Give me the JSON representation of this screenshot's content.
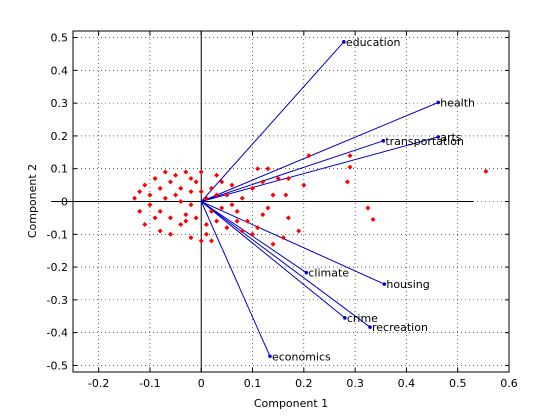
{
  "chart_data": {
    "type": "scatter",
    "subtype": "pca-biplot",
    "title": "",
    "xlabel": "Component 1",
    "ylabel": "Component 2",
    "xlim": [
      -0.25,
      0.6
    ],
    "ylim": [
      -0.52,
      0.52
    ],
    "xticks": [
      -0.2,
      -0.1,
      0,
      0.1,
      0.2,
      0.3,
      0.4,
      0.5,
      0.6
    ],
    "xtick_labels": [
      "-0.2",
      "-0.1",
      "0",
      "0.1",
      "0.2",
      "0.3",
      "0.4",
      "0.5",
      "0.6"
    ],
    "yticks": [
      -0.5,
      -0.4,
      -0.3,
      -0.2,
      -0.1,
      0,
      0.1,
      0.2,
      0.3,
      0.4,
      0.5
    ],
    "ytick_labels": [
      "-0.5",
      "-0.4",
      "-0.3",
      "-0.2",
      "-0.1",
      "0",
      "0.1",
      "0.2",
      "0.3",
      "0.4",
      "0.5"
    ],
    "grid": true,
    "grid_style": "dotted",
    "colors": {
      "vectors": "#0000cc",
      "points": "#ff0000",
      "axes": "#000000",
      "grid": "#000000"
    },
    "vectors": [
      {
        "label": "education",
        "x": 0.278,
        "y": 0.487
      },
      {
        "label": "health",
        "x": 0.462,
        "y": 0.302
      },
      {
        "label": "arts",
        "x": 0.462,
        "y": 0.197
      },
      {
        "label": "transportation",
        "x": 0.355,
        "y": 0.185
      },
      {
        "label": "climate",
        "x": 0.205,
        "y": -0.217
      },
      {
        "label": "housing",
        "x": 0.357,
        "y": -0.252
      },
      {
        "label": "crime",
        "x": 0.28,
        "y": -0.355
      },
      {
        "label": "recreation",
        "x": 0.329,
        "y": -0.383
      },
      {
        "label": "economics",
        "x": 0.134,
        "y": -0.472
      }
    ],
    "points": [
      [
        0.555,
        0.092
      ],
      [
        0.29,
        0.14
      ],
      [
        0.29,
        0.105
      ],
      [
        0.285,
        0.06
      ],
      [
        0.325,
        -0.02
      ],
      [
        0.335,
        -0.055
      ],
      [
        0.21,
        0.14
      ],
      [
        0.2,
        0.05
      ],
      [
        0.165,
        0.02
      ],
      [
        0.17,
        -0.05
      ],
      [
        0.19,
        -0.09
      ],
      [
        0.16,
        -0.11
      ],
      [
        0.12,
        0.06
      ],
      [
        0.13,
        -0.02
      ],
      [
        0.11,
        -0.08
      ],
      [
        0.14,
        -0.13
      ],
      [
        0.09,
        -0.06
      ],
      [
        0.1,
        0.04
      ],
      [
        0.08,
        0.01
      ],
      [
        0.07,
        -0.03
      ],
      [
        0.06,
        0.05
      ],
      [
        0.05,
        -0.08
      ],
      [
        0.04,
        -0.02
      ],
      [
        0.03,
        0.02
      ],
      [
        0.02,
        -0.12
      ],
      [
        0.01,
        -0.1
      ],
      [
        0.0,
        -0.12
      ],
      [
        -0.02,
        -0.11
      ],
      [
        0.02,
        0.04
      ],
      [
        0.0,
        0.03
      ],
      [
        -0.01,
        0.06
      ],
      [
        -0.03,
        0.09
      ],
      [
        -0.05,
        0.08
      ],
      [
        -0.07,
        0.09
      ],
      [
        -0.09,
        0.07
      ],
      [
        -0.11,
        0.05
      ],
      [
        -0.12,
        0.03
      ],
      [
        -0.13,
        0.01
      ],
      [
        -0.1,
        -0.01
      ],
      [
        -0.08,
        -0.03
      ],
      [
        -0.06,
        -0.05
      ],
      [
        -0.04,
        -0.07
      ],
      [
        -0.03,
        -0.04
      ],
      [
        -0.02,
        -0.01
      ],
      [
        -0.05,
        0.02
      ],
      [
        -0.07,
        0.01
      ],
      [
        -0.09,
        -0.05
      ],
      [
        -0.11,
        -0.07
      ],
      [
        -0.08,
        -0.09
      ],
      [
        -0.06,
        -0.1
      ],
      [
        -0.04,
        0.04
      ],
      [
        -0.02,
        0.07
      ],
      [
        0.0,
        0.09
      ],
      [
        0.03,
        0.08
      ],
      [
        0.04,
        0.06
      ],
      [
        0.05,
        0.02
      ],
      [
        0.06,
        -0.01
      ],
      [
        0.07,
        -0.06
      ],
      [
        0.08,
        -0.09
      ],
      [
        0.1,
        -0.1
      ],
      [
        0.12,
        -0.04
      ],
      [
        0.14,
        0.02
      ],
      [
        0.15,
        0.07
      ],
      [
        0.17,
        0.07
      ],
      [
        0.13,
        0.1
      ],
      [
        0.11,
        0.1
      ],
      [
        -0.12,
        -0.03
      ],
      [
        -0.1,
        0.02
      ],
      [
        -0.08,
        0.04
      ],
      [
        -0.06,
        0.06
      ],
      [
        -0.04,
        0.0
      ],
      [
        -0.02,
        0.03
      ],
      [
        0.01,
        0.01
      ],
      [
        0.02,
        -0.03
      ],
      [
        0.03,
        -0.06
      ],
      [
        0.01,
        -0.07
      ],
      [
        -0.01,
        -0.05
      ],
      [
        -0.03,
        -0.06
      ]
    ]
  }
}
